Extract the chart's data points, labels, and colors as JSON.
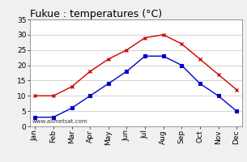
{
  "title": "Fukue : temperatures (°C)",
  "months": [
    "Jan",
    "Feb",
    "Mar",
    "Apr",
    "May",
    "Jun",
    "Jul",
    "Aug",
    "Sep",
    "Oct",
    "Nov",
    "Dec"
  ],
  "red_line": [
    10,
    10,
    13,
    18,
    22,
    25,
    29,
    30,
    27,
    22,
    17,
    12
  ],
  "blue_line": [
    3,
    3,
    6,
    10,
    14,
    18,
    23,
    23,
    20,
    14,
    10,
    5
  ],
  "red_color": "#cc0000",
  "blue_color": "#0000cc",
  "ylim": [
    0,
    35
  ],
  "yticks": [
    0,
    5,
    10,
    15,
    20,
    25,
    30,
    35
  ],
  "bg_color": "#f0f0f0",
  "plot_bg_color": "#ffffff",
  "watermark": "www.allmetsat.com",
  "title_fontsize": 9,
  "tick_fontsize": 6.5
}
